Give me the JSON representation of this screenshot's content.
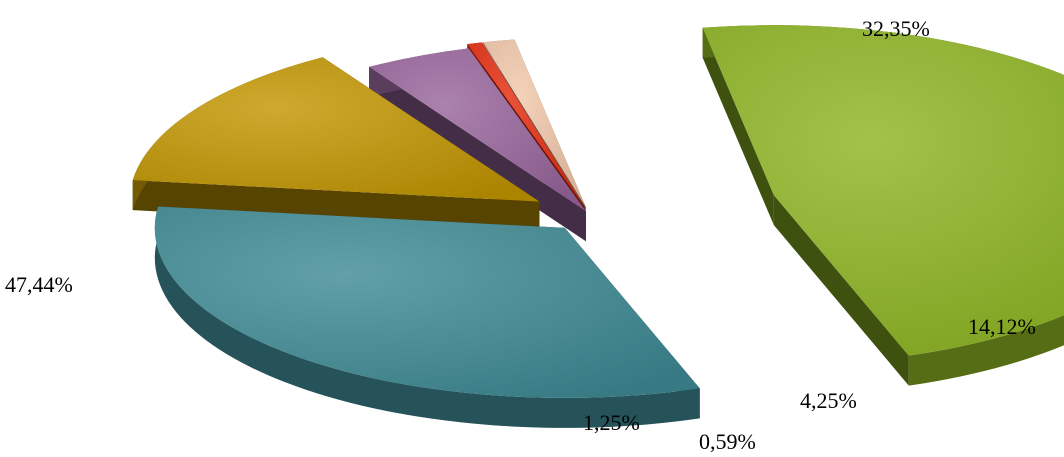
{
  "chart_data": {
    "type": "pie",
    "title": "",
    "exploded": true,
    "three_d": true,
    "legend": "none",
    "slices": [
      {
        "value": 47.44,
        "label": "47,44%",
        "color": "#8db521"
      },
      {
        "value": 32.35,
        "label": "32,35%",
        "color": "#3e8b95"
      },
      {
        "value": 14.12,
        "label": "14,12%",
        "color": "#c29600"
      },
      {
        "value": 4.25,
        "label": "4,25%",
        "color": "#98659c"
      },
      {
        "value": 0.59,
        "label": "0,59%",
        "color": "#e52b0e"
      },
      {
        "value": 1.25,
        "label": "1,25%",
        "color": "#f1c8ab"
      }
    ]
  }
}
